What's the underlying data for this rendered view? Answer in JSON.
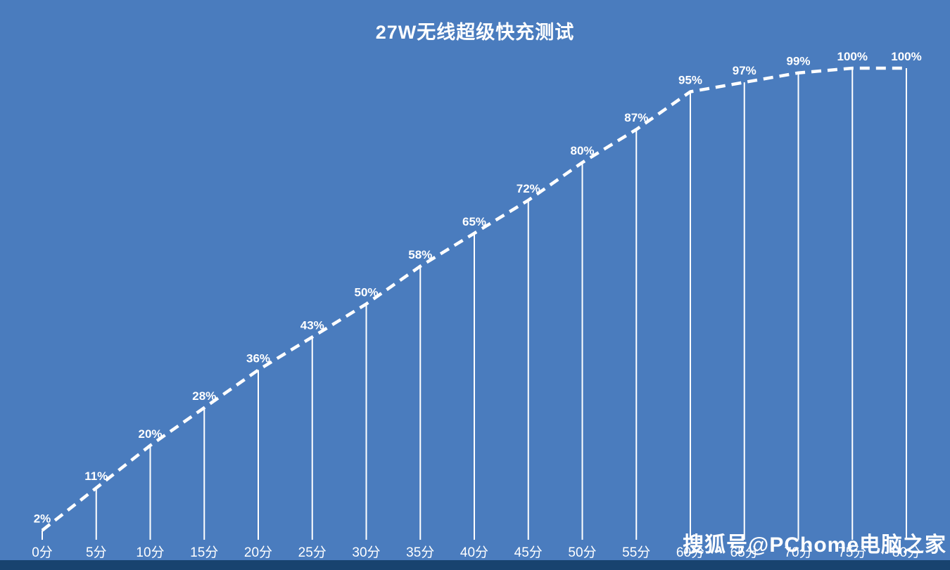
{
  "title": "27W无线超级快充测试",
  "watermark": "搜狐号@PChome电脑之家",
  "colors": {
    "background": "#4a7cbe",
    "line": "#ffffff",
    "text": "#ffffff",
    "footer_strip": "#18436f"
  },
  "chart_data": {
    "type": "line",
    "title": "27W无线超级快充测试",
    "categories": [
      "0分",
      "5分",
      "10分",
      "15分",
      "20分",
      "25分",
      "30分",
      "35分",
      "40分",
      "45分",
      "50分",
      "55分",
      "60分",
      "65分",
      "70分",
      "75分",
      "80分"
    ],
    "values": [
      2,
      11,
      20,
      28,
      36,
      43,
      50,
      58,
      65,
      72,
      80,
      87,
      95,
      97,
      99,
      100,
      100
    ],
    "value_labels": [
      "2%",
      "11%",
      "20%",
      "28%",
      "36%",
      "43%",
      "50%",
      "58%",
      "65%",
      "72%",
      "80%",
      "87%",
      "95%",
      "97%",
      "99%",
      "100%",
      "100%"
    ],
    "xlabel": "",
    "ylabel": "",
    "ylim": [
      0,
      100
    ],
    "line_style": "dashed",
    "drop_lines": true,
    "grid": false,
    "legend": "none"
  }
}
